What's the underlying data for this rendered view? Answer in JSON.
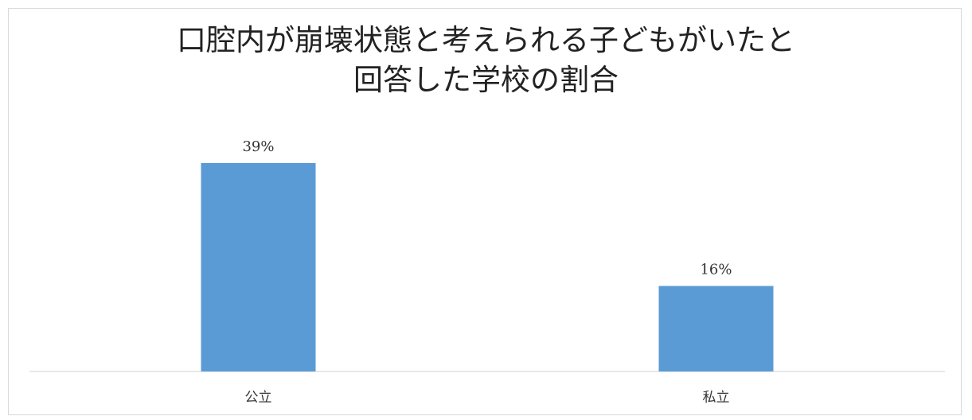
{
  "chart_data": {
    "type": "bar",
    "title": [
      "口腔内が崩壊状態と考えられる子どもがいたと",
      "回答した学校の割合"
    ],
    "categories": [
      "公立",
      "私立"
    ],
    "values": [
      39,
      16
    ],
    "data_labels": [
      "39%",
      "16%"
    ],
    "unit": "%",
    "ylim": [
      0,
      45
    ],
    "grid": false,
    "legend": "none",
    "bar_color": "#5b9bd5"
  }
}
